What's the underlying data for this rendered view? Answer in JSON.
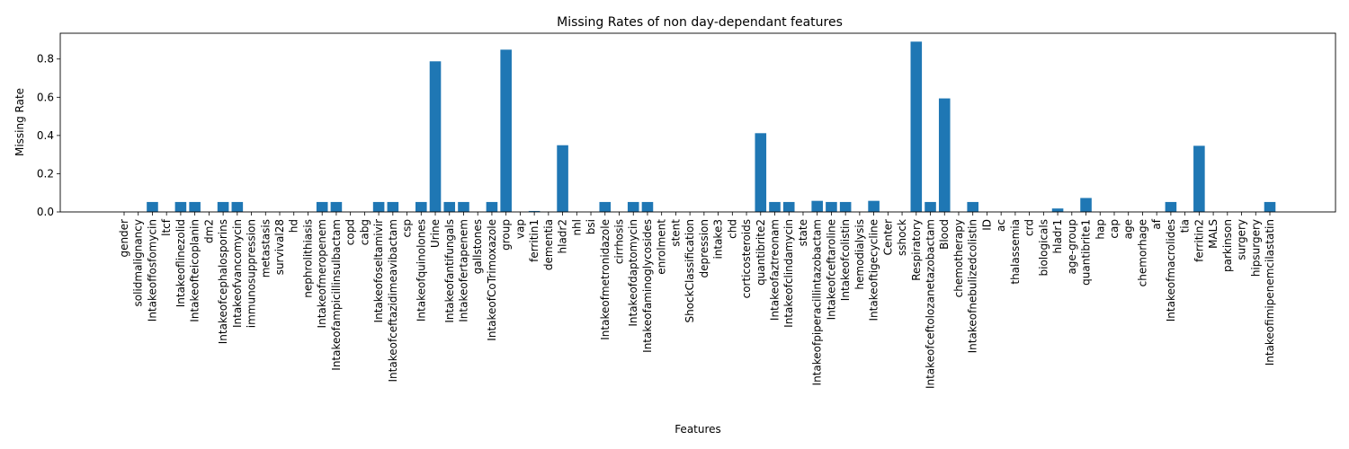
{
  "chart_data": {
    "type": "bar",
    "title": "Missing Rates of non day-dependant features",
    "xlabel": "Features",
    "ylabel": "Missing Rate",
    "ylim": [
      0,
      0.935
    ],
    "yticks": [
      0.0,
      0.2,
      0.4,
      0.6,
      0.8
    ],
    "ytick_labels": [
      "0.0",
      "0.2",
      "0.4",
      "0.6",
      "0.8"
    ],
    "bar_color": "#1f77b4",
    "grid": false,
    "categories": [
      "gender",
      "solidmalignancy",
      "Intakeoffosfomycin",
      "ltcf",
      "Intakeoflinezolid",
      "Intakeofteicoplanin",
      "dm2",
      "Intakeofcephalosporins",
      "Intakeofvancomycin",
      "immunosuppression",
      "metastasis",
      "survival28",
      "hd",
      "nephrolithiasis",
      "Intakeofmeropenem",
      "Intakeofampicillinsulbactam",
      "copd",
      "cabg",
      "Intakeofoseltamivir",
      "Intakeofceftazidimeavibactam",
      "csp",
      "Intakeofquinolones",
      "Urine",
      "Intakeofantifungals",
      "Intakeofertapenem",
      "gallstones",
      "IntakeofCoTrimoxazole",
      "group",
      "vap",
      "ferritin1",
      "dementia",
      "hladr2",
      "nhl",
      "bsi",
      "Intakeofmetronidazole",
      "cirrhosis",
      "Intakeofdaptomycin",
      "Intakeofaminoglycosides",
      "enrolment",
      "stent",
      "ShockClassification",
      "depression",
      "intake3",
      "chd",
      "corticosteroids",
      "quantibrite2",
      "Intakeofaztreonam",
      "Intakeofclindamycin",
      "state",
      "Intakeofpiperacillintazobactam",
      "Intakeofceftaroline",
      "Intakeofcolistin",
      "hemodialysis",
      "Intakeoftigecycline",
      "Center",
      "sshock",
      "Respiratory",
      "Intakeofceftolozanetazobactam",
      "Blood",
      "chemotherapy",
      "Intakeofnebulizedcolistin",
      "ID",
      "ac",
      "thalassemia",
      "crd",
      "biologicals",
      "hladr1",
      "age-group",
      "quantibrite1",
      "hap",
      "cap",
      "age",
      "chemorhage",
      "af",
      "Intakeofmacrolides",
      "tia",
      "ferritin2",
      "MALS",
      "parkinson",
      "surgery",
      "hipsurgery",
      "Intakeofimipenemcilastatin"
    ],
    "values": [
      0,
      0,
      0.052,
      0,
      0.052,
      0.052,
      0,
      0.052,
      0.052,
      0,
      0,
      0,
      0,
      0,
      0.052,
      0.052,
      0,
      0,
      0.052,
      0.052,
      0,
      0.052,
      0.788,
      0.052,
      0.052,
      0,
      0.052,
      0.849,
      0,
      0.005,
      0,
      0.349,
      0,
      0,
      0.052,
      0,
      0.052,
      0.052,
      0,
      0,
      0,
      0,
      0,
      0,
      0,
      0.412,
      0.052,
      0.052,
      0,
      0.058,
      0.052,
      0.052,
      0,
      0.058,
      0,
      0,
      0.891,
      0.052,
      0.594,
      0,
      0.052,
      0,
      0,
      0,
      0,
      0,
      0.018,
      0,
      0.073,
      0,
      0,
      0,
      0,
      0,
      0.052,
      0,
      0.346,
      0,
      0,
      0,
      0,
      0.052
    ]
  }
}
